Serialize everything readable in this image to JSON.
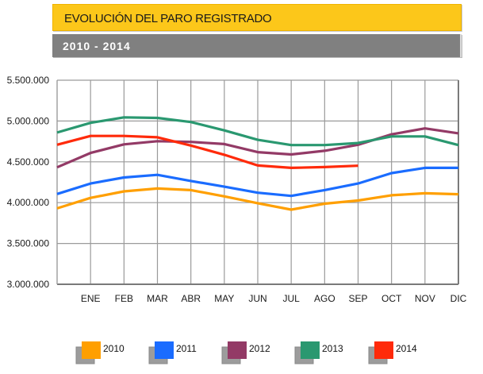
{
  "header": {
    "title": "EVOLUCIÓN DEL PARO REGISTRADO",
    "subtitle": "2010 - 2014"
  },
  "chart_data": {
    "type": "line",
    "title": "EVOLUCIÓN DEL PARO REGISTRADO",
    "subtitle": "2010 - 2014",
    "xlabel": "",
    "ylabel": "",
    "categories": [
      "",
      "ENE",
      "FEB",
      "MAR",
      "ABR",
      "MAY",
      "JUN",
      "JUL",
      "AGO",
      "SEP",
      "OCT",
      "NOV",
      "DIC"
    ],
    "ylim": [
      3000000,
      5500000
    ],
    "yticks": [
      3000000,
      3500000,
      4000000,
      4500000,
      5000000,
      5500000
    ],
    "ytick_labels": [
      "3.000.000",
      "3.500.000",
      "4.000.000",
      "4.500.000",
      "5.000.000",
      "5.500.000"
    ],
    "grid": true,
    "legend_position": "bottom",
    "series": [
      {
        "name": "2010",
        "color": "#ff9f00",
        "values": [
          3930000,
          4058000,
          4138000,
          4173000,
          4154000,
          4077000,
          3993000,
          3914000,
          3987000,
          4026000,
          4090000,
          4115000,
          4103000
        ]
      },
      {
        "name": "2011",
        "color": "#1a6cff",
        "values": [
          4106000,
          4234000,
          4308000,
          4340000,
          4266000,
          4196000,
          4122000,
          4083000,
          4154000,
          4234000,
          4362000,
          4426000,
          4426000
        ]
      },
      {
        "name": "2012",
        "color": "#933a66",
        "values": [
          4433000,
          4609000,
          4714000,
          4753000,
          4744000,
          4718000,
          4619000,
          4590000,
          4635000,
          4709000,
          4837000,
          4910000,
          4849000
        ]
      },
      {
        "name": "2013",
        "color": "#2a9870",
        "values": [
          4859000,
          4978000,
          5045000,
          5038000,
          4987000,
          4885000,
          4769000,
          4705000,
          4705000,
          4731000,
          4811000,
          4811000,
          4705000
        ]
      },
      {
        "name": "2014",
        "color": "#ff2a0a",
        "values": [
          4709000,
          4817000,
          4817000,
          4801000,
          4699000,
          4587000,
          4455000,
          4426000,
          4436000,
          4452000,
          null,
          null,
          null
        ]
      }
    ]
  }
}
